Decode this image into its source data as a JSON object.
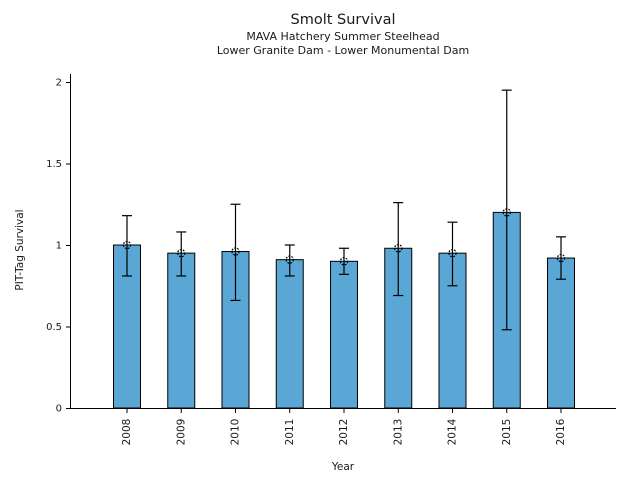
{
  "chart_data": {
    "type": "bar",
    "title": "Smolt Survival",
    "subtitle1": "MAVA Hatchery Summer Steelhead",
    "subtitle2": "Lower Granite Dam - Lower Monumental Dam",
    "xlabel": "Year",
    "ylabel": "PIT-Tag Survival",
    "categories": [
      "2008",
      "2009",
      "2010",
      "2011",
      "2012",
      "2013",
      "2014",
      "2015",
      "2016"
    ],
    "values": [
      1.0,
      0.95,
      0.96,
      0.91,
      0.9,
      0.98,
      0.95,
      1.2,
      0.92
    ],
    "error_low": [
      0.81,
      0.81,
      0.66,
      0.81,
      0.82,
      0.69,
      0.75,
      0.48,
      0.79
    ],
    "error_high": [
      1.18,
      1.08,
      1.25,
      1.0,
      0.98,
      1.26,
      1.14,
      1.95,
      1.05
    ],
    "ylim": [
      0,
      2
    ],
    "yticks": [
      0,
      0.5,
      1,
      1.5,
      2
    ],
    "ytick_labels": [
      "0",
      "0.5",
      "1",
      "1.5",
      "2"
    ],
    "grid": false,
    "legend": "none",
    "bar_color": "#5AA7D5",
    "bar_edge_color": "#000000",
    "error_color": "#000000",
    "marker": "open-circle-dotted",
    "text_color": "#1a1a1a"
  }
}
